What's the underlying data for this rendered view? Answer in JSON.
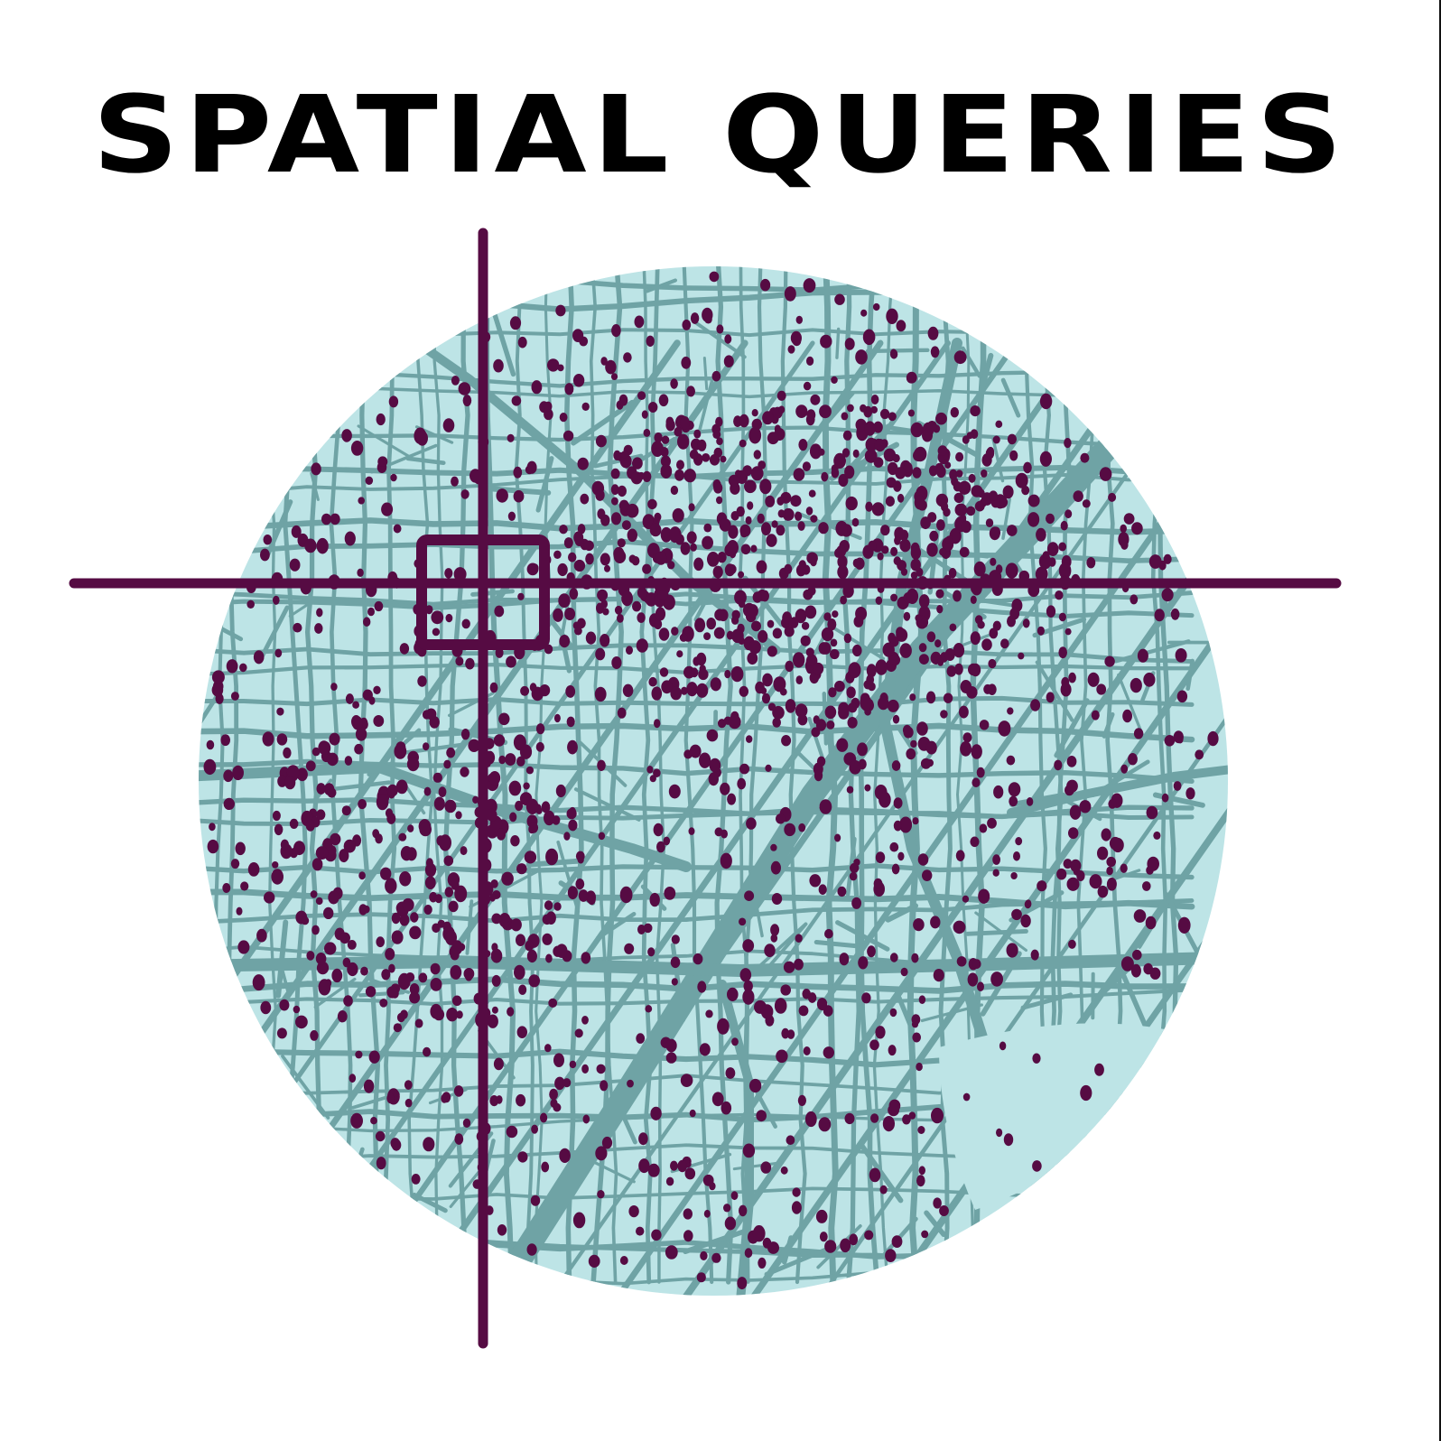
{
  "title": "SPATIAL QUERIES",
  "colors": {
    "background": "#ffffff",
    "map_fill": "#bde4e6",
    "streets": "#6fa3a5",
    "points": "#560b43",
    "crosshair": "#560b43",
    "title": "#000000"
  },
  "icons": {
    "crosshair": "crosshair-icon",
    "query_box": "selection-box-icon"
  }
}
